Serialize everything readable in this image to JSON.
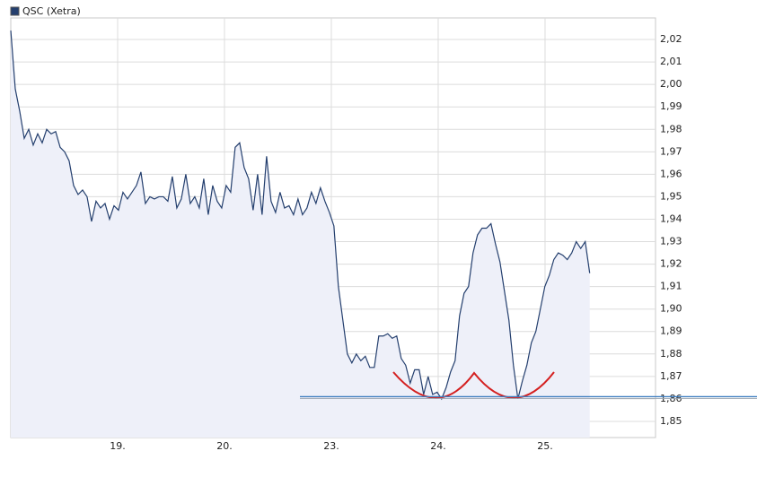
{
  "chart_data": {
    "type": "line",
    "x": [
      0,
      0.042,
      0.084,
      0.126,
      0.168,
      0.21,
      0.252,
      0.294,
      0.336,
      0.378,
      0.42,
      0.462,
      0.504,
      0.546,
      0.588,
      0.63,
      0.672,
      0.714,
      0.756,
      0.798,
      0.84,
      0.882,
      0.924,
      0.966,
      1.008,
      1.05,
      1.092,
      1.134,
      1.176,
      1.218,
      1.26,
      1.302,
      1.344,
      1.386,
      1.428,
      1.47,
      1.512,
      1.554,
      1.596,
      1.638,
      1.68,
      1.722,
      1.764,
      1.806,
      1.848,
      1.89,
      1.932,
      1.974,
      2.016,
      2.058,
      2.1,
      2.142,
      2.184,
      2.226,
      2.268,
      2.31,
      2.352,
      2.394,
      2.436,
      2.478,
      2.52,
      2.562,
      2.604,
      2.646,
      2.688,
      2.73,
      2.772,
      2.814,
      2.856,
      2.898,
      2.94,
      2.982,
      3.024,
      3.066,
      3.108,
      3.15,
      3.192,
      3.234,
      3.276,
      3.318,
      3.36,
      3.402,
      3.444,
      3.486,
      3.528,
      3.57,
      3.612,
      3.654,
      3.696,
      3.738,
      3.78,
      3.822,
      3.864,
      3.906,
      3.948,
      3.99,
      4.032,
      4.074,
      4.116,
      4.158,
      4.2,
      4.242,
      4.284,
      4.326,
      4.368,
      4.41,
      4.452,
      4.494,
      4.536,
      4.578,
      4.62,
      4.662,
      4.704,
      4.746,
      4.788,
      4.83,
      4.872,
      4.914,
      4.956,
      4.998,
      5.04,
      5.082,
      5.124,
      5.166,
      5.208,
      5.25,
      5.292,
      5.334,
      5.376,
      5.418
    ],
    "series": [
      {
        "name": "QSC (Xetra)",
        "color": "#243f6e",
        "fill_color": "#eef0f9",
        "values": [
          2.024,
          1.998,
          1.988,
          1.976,
          1.98,
          1.973,
          1.978,
          1.974,
          1.98,
          1.978,
          1.979,
          1.972,
          1.97,
          1.966,
          1.955,
          1.951,
          1.953,
          1.95,
          1.939,
          1.948,
          1.945,
          1.947,
          1.94,
          1.946,
          1.944,
          1.952,
          1.949,
          1.952,
          1.955,
          1.961,
          1.947,
          1.95,
          1.949,
          1.95,
          1.95,
          1.948,
          1.959,
          1.945,
          1.949,
          1.96,
          1.947,
          1.95,
          1.945,
          1.958,
          1.942,
          1.955,
          1.948,
          1.945,
          1.955,
          1.952,
          1.972,
          1.974,
          1.963,
          1.958,
          1.944,
          1.96,
          1.942,
          1.968,
          1.948,
          1.943,
          1.952,
          1.945,
          1.946,
          1.942,
          1.949,
          1.942,
          1.945,
          1.952,
          1.947,
          1.954,
          1.948,
          1.943,
          1.937,
          1.91,
          1.895,
          1.88,
          1.876,
          1.88,
          1.877,
          1.879,
          1.874,
          1.874,
          1.888,
          1.888,
          1.889,
          1.887,
          1.888,
          1.878,
          1.875,
          1.867,
          1.873,
          1.873,
          1.862,
          1.87,
          1.862,
          1.863,
          1.86,
          1.865,
          1.872,
          1.877,
          1.897,
          1.907,
          1.91,
          1.925,
          1.933,
          1.936,
          1.936,
          1.938,
          1.929,
          1.921,
          1.908,
          1.895,
          1.875,
          1.86,
          1.868,
          1.875,
          1.885,
          1.89,
          1.9,
          1.91,
          1.915,
          1.922,
          1.925,
          1.924,
          1.922,
          1.925,
          1.93,
          1.927,
          1.93,
          1.916
        ]
      }
    ],
    "xlim": [
      0,
      6.034
    ],
    "xticks": [
      {
        "value": 1,
        "label": "19."
      },
      {
        "value": 2,
        "label": "20."
      },
      {
        "value": 3,
        "label": "23."
      },
      {
        "value": 4,
        "label": "24."
      },
      {
        "value": 5,
        "label": "25."
      }
    ],
    "ylim": [
      1.8428,
      2.0296
    ],
    "yticks": [
      {
        "value": 1.85,
        "label": "1,85"
      },
      {
        "value": 1.86,
        "label": "1,86"
      },
      {
        "value": 1.87,
        "label": "1,87"
      },
      {
        "value": 1.88,
        "label": "1,88"
      },
      {
        "value": 1.89,
        "label": "1,89"
      },
      {
        "value": 1.9,
        "label": "1,90"
      },
      {
        "value": 1.91,
        "label": "1,91"
      },
      {
        "value": 1.92,
        "label": "1,92"
      },
      {
        "value": 1.93,
        "label": "1,93"
      },
      {
        "value": 1.94,
        "label": "1,94"
      },
      {
        "value": 1.95,
        "label": "1,95"
      },
      {
        "value": 1.96,
        "label": "1,96"
      },
      {
        "value": 1.97,
        "label": "1,97"
      },
      {
        "value": 1.98,
        "label": "1,98"
      },
      {
        "value": 1.99,
        "label": "1,99"
      },
      {
        "value": 2.0,
        "label": "2,00"
      },
      {
        "value": 2.01,
        "label": "2,01"
      },
      {
        "value": 2.02,
        "label": "2,02"
      }
    ],
    "grid": true,
    "support_line": 1.861
  }
}
